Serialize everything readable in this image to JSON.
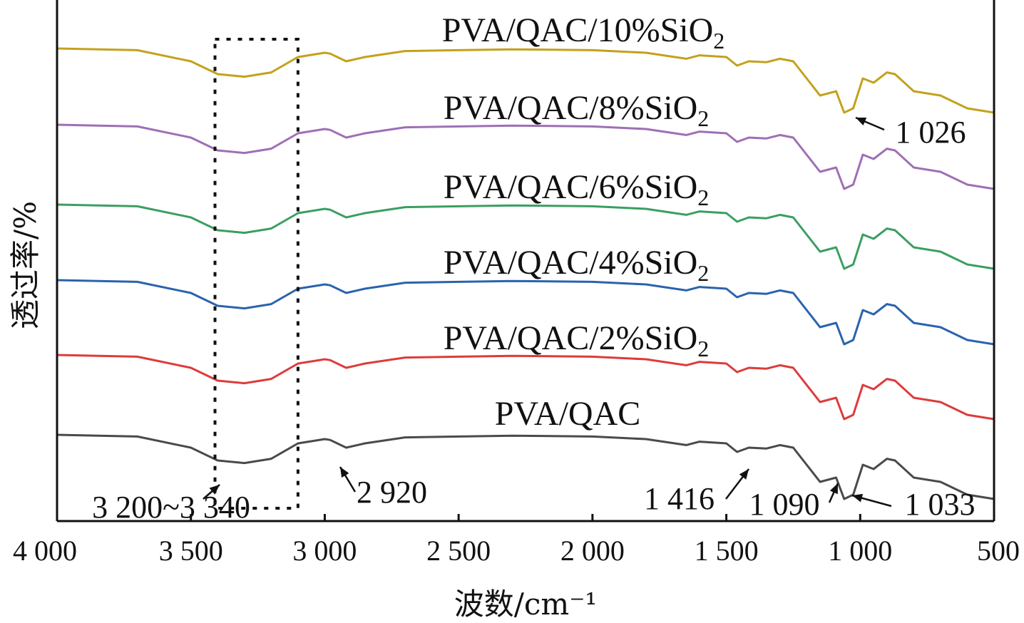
{
  "chart_data": {
    "type": "line",
    "xlabel": "波数/cm⁻¹",
    "ylabel": "透过率/%",
    "xlim": [
      4000,
      500
    ],
    "x_reversed": true,
    "x_ticks": [
      4000,
      3500,
      3000,
      2500,
      2000,
      1500,
      1000,
      500
    ],
    "x_tick_labels": [
      "4 000",
      "3 500",
      "3 000",
      "2 500",
      "2 000",
      "1 500",
      "1 000",
      "500"
    ],
    "y_ticks_shown": false,
    "grid": false,
    "legend": "labels above each curve",
    "highlight_box": {
      "x_range": [
        3410,
        3100
      ],
      "style": "dotted"
    },
    "series": [
      {
        "name": "PVA/QAC/10%SiO2",
        "color": "#c4a11c",
        "x": [
          4000,
          3700,
          3500,
          3400,
          3300,
          3200,
          3100,
          3000,
          2980,
          2920,
          2850,
          2700,
          2500,
          2300,
          2000,
          1800,
          1650,
          1600,
          1500,
          1460,
          1416,
          1350,
          1300,
          1250,
          1200,
          1150,
          1090,
          1060,
          1026,
          990,
          950,
          900,
          870,
          800,
          700,
          600,
          500
        ],
        "y": [
          0.0,
          -0.02,
          -0.15,
          -0.3,
          -0.33,
          -0.28,
          -0.1,
          -0.05,
          -0.06,
          -0.15,
          -0.1,
          -0.03,
          -0.02,
          -0.01,
          -0.02,
          -0.05,
          -0.12,
          -0.08,
          -0.1,
          -0.2,
          -0.15,
          -0.16,
          -0.12,
          -0.15,
          -0.35,
          -0.55,
          -0.5,
          -0.75,
          -0.7,
          -0.35,
          -0.4,
          -0.28,
          -0.3,
          -0.5,
          -0.55,
          -0.7,
          -0.75
        ]
      },
      {
        "name": "PVA/QAC/8%SiO2",
        "color": "#9f6fb5",
        "x": [
          4000,
          3700,
          3500,
          3400,
          3300,
          3200,
          3100,
          3000,
          2980,
          2920,
          2850,
          2700,
          2500,
          2300,
          2000,
          1800,
          1650,
          1600,
          1500,
          1460,
          1416,
          1350,
          1300,
          1250,
          1200,
          1150,
          1090,
          1060,
          1026,
          990,
          950,
          900,
          870,
          800,
          700,
          600,
          500
        ],
        "y": [
          0.0,
          -0.02,
          -0.15,
          -0.3,
          -0.33,
          -0.28,
          -0.1,
          -0.05,
          -0.06,
          -0.15,
          -0.1,
          -0.03,
          -0.02,
          -0.01,
          -0.02,
          -0.05,
          -0.12,
          -0.08,
          -0.1,
          -0.2,
          -0.15,
          -0.16,
          -0.12,
          -0.15,
          -0.35,
          -0.55,
          -0.5,
          -0.75,
          -0.7,
          -0.35,
          -0.4,
          -0.28,
          -0.3,
          -0.5,
          -0.55,
          -0.7,
          -0.75
        ]
      },
      {
        "name": "PVA/QAC/6%SiO2",
        "color": "#3a9f62",
        "x": [
          4000,
          3700,
          3500,
          3400,
          3300,
          3200,
          3100,
          3000,
          2980,
          2920,
          2850,
          2700,
          2500,
          2300,
          2000,
          1800,
          1650,
          1600,
          1500,
          1460,
          1416,
          1350,
          1300,
          1250,
          1200,
          1150,
          1090,
          1060,
          1026,
          990,
          950,
          900,
          870,
          800,
          700,
          600,
          500
        ],
        "y": [
          0.0,
          -0.02,
          -0.15,
          -0.3,
          -0.33,
          -0.28,
          -0.1,
          -0.05,
          -0.06,
          -0.15,
          -0.1,
          -0.03,
          -0.02,
          -0.01,
          -0.02,
          -0.05,
          -0.12,
          -0.08,
          -0.1,
          -0.2,
          -0.15,
          -0.16,
          -0.12,
          -0.15,
          -0.35,
          -0.55,
          -0.5,
          -0.75,
          -0.7,
          -0.35,
          -0.4,
          -0.28,
          -0.3,
          -0.5,
          -0.55,
          -0.7,
          -0.75
        ]
      },
      {
        "name": "PVA/QAC/4%SiO2",
        "color": "#2a63ad",
        "x": [
          4000,
          3700,
          3500,
          3400,
          3300,
          3200,
          3100,
          3000,
          2980,
          2920,
          2850,
          2700,
          2500,
          2300,
          2000,
          1800,
          1650,
          1600,
          1500,
          1460,
          1416,
          1350,
          1300,
          1250,
          1200,
          1150,
          1090,
          1060,
          1026,
          990,
          950,
          900,
          870,
          800,
          700,
          600,
          500
        ],
        "y": [
          0.0,
          -0.02,
          -0.15,
          -0.3,
          -0.33,
          -0.28,
          -0.1,
          -0.05,
          -0.06,
          -0.15,
          -0.1,
          -0.03,
          -0.02,
          -0.01,
          -0.02,
          -0.05,
          -0.12,
          -0.08,
          -0.1,
          -0.2,
          -0.15,
          -0.16,
          -0.12,
          -0.15,
          -0.35,
          -0.55,
          -0.5,
          -0.75,
          -0.7,
          -0.35,
          -0.4,
          -0.28,
          -0.3,
          -0.5,
          -0.55,
          -0.7,
          -0.75
        ]
      },
      {
        "name": "PVA/QAC/2%SiO2",
        "color": "#de3b3b",
        "x": [
          4000,
          3700,
          3500,
          3400,
          3300,
          3200,
          3100,
          3000,
          2980,
          2920,
          2850,
          2700,
          2500,
          2300,
          2000,
          1800,
          1650,
          1600,
          1500,
          1460,
          1416,
          1350,
          1300,
          1250,
          1200,
          1150,
          1090,
          1060,
          1026,
          990,
          950,
          900,
          870,
          800,
          700,
          600,
          500
        ],
        "y": [
          0.0,
          -0.02,
          -0.15,
          -0.3,
          -0.33,
          -0.28,
          -0.1,
          -0.05,
          -0.06,
          -0.15,
          -0.1,
          -0.03,
          -0.02,
          -0.01,
          -0.02,
          -0.05,
          -0.12,
          -0.08,
          -0.1,
          -0.2,
          -0.15,
          -0.16,
          -0.12,
          -0.15,
          -0.35,
          -0.55,
          -0.5,
          -0.75,
          -0.7,
          -0.35,
          -0.4,
          -0.28,
          -0.3,
          -0.5,
          -0.55,
          -0.7,
          -0.75
        ]
      },
      {
        "name": "PVA/QAC",
        "color": "#4a4a4a",
        "x": [
          4000,
          3700,
          3500,
          3400,
          3300,
          3200,
          3100,
          3000,
          2980,
          2920,
          2850,
          2700,
          2500,
          2300,
          2000,
          1800,
          1650,
          1600,
          1500,
          1460,
          1416,
          1350,
          1300,
          1250,
          1200,
          1150,
          1090,
          1060,
          1026,
          990,
          950,
          900,
          870,
          800,
          700,
          600,
          500
        ],
        "y": [
          0.0,
          -0.02,
          -0.15,
          -0.3,
          -0.33,
          -0.28,
          -0.1,
          -0.05,
          -0.06,
          -0.15,
          -0.1,
          -0.03,
          -0.02,
          -0.01,
          -0.02,
          -0.05,
          -0.12,
          -0.08,
          -0.1,
          -0.2,
          -0.15,
          -0.16,
          -0.12,
          -0.15,
          -0.35,
          -0.55,
          -0.5,
          -0.75,
          -0.7,
          -0.35,
          -0.4,
          -0.28,
          -0.3,
          -0.5,
          -0.55,
          -0.7,
          -0.75
        ]
      }
    ],
    "annotations": [
      {
        "text": "3 200~3 340",
        "x": 3450
      },
      {
        "text": "2 920",
        "x": 2920
      },
      {
        "text": "1 416",
        "x": 1416
      },
      {
        "text": "1 090",
        "x": 1090
      },
      {
        "text": "1 033",
        "x": 1033
      },
      {
        "text": "1 026",
        "x": 1026
      }
    ]
  }
}
